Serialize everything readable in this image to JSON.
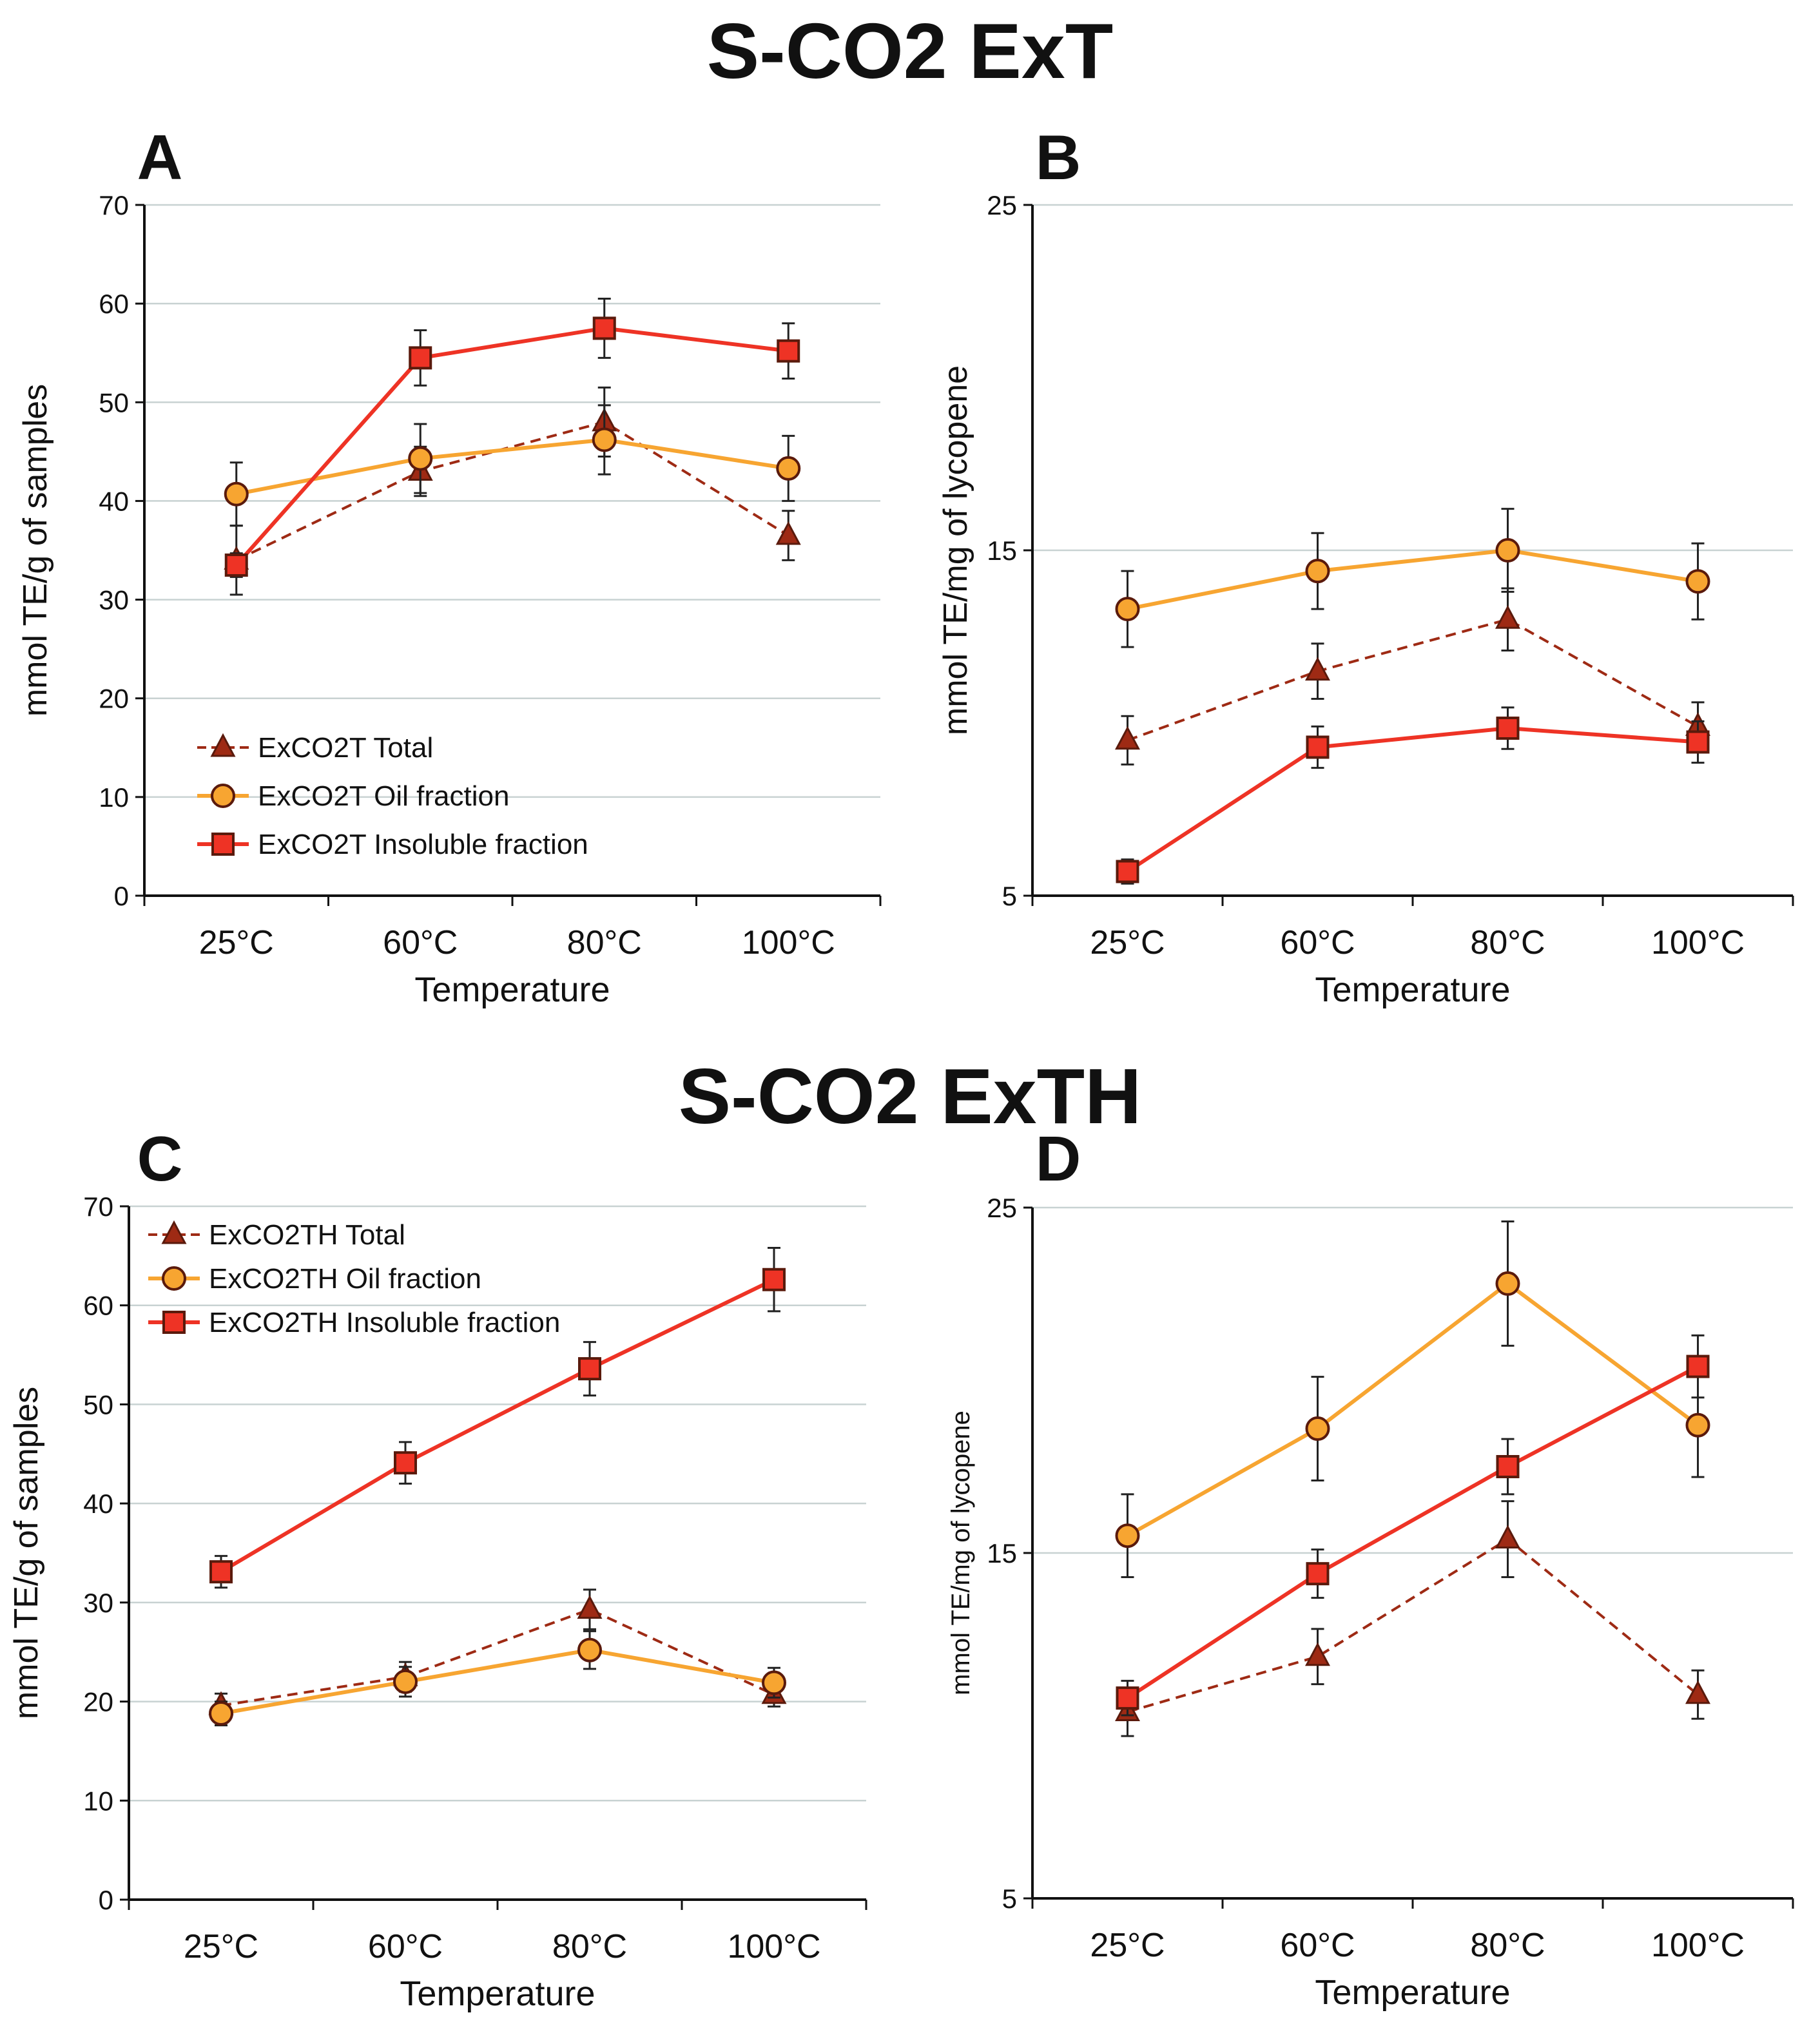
{
  "titles": {
    "top": "S-CO2 ExT",
    "bottom": "S-CO2 ExTH"
  },
  "chart_data": [
    {
      "id": "A",
      "type": "line",
      "panel_label": "A",
      "title": "",
      "xlabel": "Temperature",
      "ylabel": "mmol TE/g of samples",
      "categories": [
        "25°C",
        "60°C",
        "80°C",
        "100°C"
      ],
      "ylim": [
        0,
        70
      ],
      "yticks": [
        0,
        10,
        20,
        30,
        40,
        50,
        60,
        70
      ],
      "grid": true,
      "legend_position": "bottom-left",
      "series": [
        {
          "name": "ExCO2T Total",
          "style": "dashed",
          "marker": "triangle",
          "color": "#9e2a14",
          "values": [
            34.0,
            43.0,
            48.0,
            36.5
          ],
          "errors": [
            3.5,
            2.5,
            3.5,
            2.5
          ]
        },
        {
          "name": "ExCO2T Oil fraction",
          "style": "solid",
          "marker": "circle",
          "color": "#f7a531",
          "values": [
            40.7,
            44.3,
            46.2,
            43.3
          ],
          "errors": [
            3.2,
            3.5,
            3.5,
            3.3
          ]
        },
        {
          "name": "ExCO2T Insoluble fraction",
          "style": "solid",
          "marker": "square",
          "color": "#ee3325",
          "values": [
            33.5,
            54.5,
            57.5,
            55.2
          ],
          "errors": [
            1.2,
            2.8,
            3.0,
            2.8
          ]
        }
      ]
    },
    {
      "id": "B",
      "type": "line",
      "panel_label": "B",
      "title": "",
      "xlabel": "Temperature",
      "ylabel": "mmol TE/mg of lycopene",
      "categories": [
        "25°C",
        "60°C",
        "80°C",
        "100°C"
      ],
      "ylim": [
        5,
        25
      ],
      "yticks": [
        5,
        15,
        25
      ],
      "ytick_labels": [
        "5",
        "15",
        "25"
      ],
      "grid": true,
      "series": [
        {
          "name": "Total",
          "style": "dashed",
          "marker": "triangle",
          "color": "#9e2a14",
          "values": [
            9.5,
            11.5,
            13.0,
            9.9
          ],
          "errors": [
            0.7,
            0.8,
            0.9,
            0.7
          ]
        },
        {
          "name": "Oil fraction",
          "style": "solid",
          "marker": "circle",
          "color": "#f7a531",
          "values": [
            13.3,
            14.4,
            15.0,
            14.1
          ],
          "errors": [
            1.1,
            1.1,
            1.2,
            1.1
          ]
        },
        {
          "name": "Insoluble fraction",
          "style": "solid",
          "marker": "square",
          "color": "#ee3325",
          "values": [
            5.7,
            9.3,
            9.85,
            9.45
          ],
          "errors": [
            0.35,
            0.6,
            0.6,
            0.6
          ]
        }
      ]
    },
    {
      "id": "C",
      "type": "line",
      "panel_label": "C",
      "title": "",
      "xlabel": "Temperature",
      "ylabel": "mmol TE/g of samples",
      "categories": [
        "25°C",
        "60°C",
        "80°C",
        "100°C"
      ],
      "ylim": [
        0,
        70
      ],
      "yticks": [
        0,
        10,
        20,
        30,
        40,
        50,
        60,
        70
      ],
      "grid": true,
      "legend_position": "top-left",
      "series": [
        {
          "name": "ExCO2TH Total",
          "style": "dashed",
          "marker": "triangle",
          "color": "#9e2a14",
          "values": [
            19.6,
            22.5,
            29.3,
            20.7
          ],
          "errors": [
            1.2,
            1.5,
            2.0,
            1.2
          ]
        },
        {
          "name": "ExCO2TH Oil fraction",
          "style": "solid",
          "marker": "circle",
          "color": "#f7a531",
          "values": [
            18.8,
            22.0,
            25.2,
            21.9
          ],
          "errors": [
            1.2,
            1.5,
            1.9,
            1.5
          ]
        },
        {
          "name": "ExCO2TH Insoluble fraction",
          "style": "solid",
          "marker": "square",
          "color": "#ee3325",
          "values": [
            33.1,
            44.1,
            53.6,
            62.6
          ],
          "errors": [
            1.6,
            2.1,
            2.7,
            3.2
          ]
        }
      ]
    },
    {
      "id": "D",
      "type": "line",
      "panel_label": "D",
      "title": "",
      "xlabel": "Temperature",
      "ylabel": "mmol TE/mg of lycopene",
      "categories": [
        "25°C",
        "60°C",
        "80°C",
        "100°C"
      ],
      "ylim": [
        5,
        25
      ],
      "yticks": [
        5,
        15,
        25
      ],
      "ytick_labels": [
        "5",
        "15",
        "25"
      ],
      "grid": true,
      "series": [
        {
          "name": "Total",
          "style": "dashed",
          "marker": "triangle",
          "color": "#9e2a14",
          "values": [
            10.4,
            12.0,
            15.4,
            10.9
          ],
          "errors": [
            0.7,
            0.8,
            1.1,
            0.7
          ]
        },
        {
          "name": "Oil fraction",
          "style": "solid",
          "marker": "circle",
          "color": "#f7a531",
          "values": [
            15.5,
            18.6,
            22.8,
            18.7
          ],
          "errors": [
            1.2,
            1.5,
            1.8,
            1.5
          ]
        },
        {
          "name": "Insoluble fraction",
          "style": "solid",
          "marker": "square",
          "color": "#ee3325",
          "values": [
            10.8,
            14.4,
            17.5,
            20.4
          ],
          "errors": [
            0.5,
            0.7,
            0.8,
            0.9
          ]
        }
      ]
    }
  ]
}
